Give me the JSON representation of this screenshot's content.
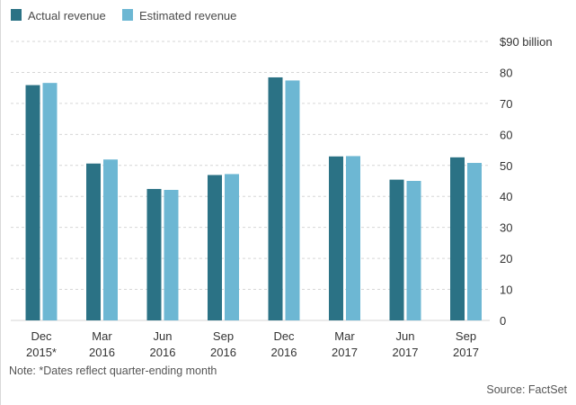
{
  "chart_data": {
    "type": "bar",
    "categories": [
      [
        "Dec",
        "2015*"
      ],
      [
        "Mar",
        "2016"
      ],
      [
        "Jun",
        "2016"
      ],
      [
        "Sep",
        "2016"
      ],
      [
        "Dec",
        "2016"
      ],
      [
        "Mar",
        "2017"
      ],
      [
        "Jun",
        "2017"
      ],
      [
        "Sep",
        "2017"
      ]
    ],
    "series": [
      {
        "name": "Actual revenue",
        "color": "#2b7285",
        "values": [
          75.9,
          50.6,
          42.4,
          46.9,
          78.4,
          52.9,
          45.4,
          52.6
        ]
      },
      {
        "name": "Estimated revenue",
        "color": "#6db7d3",
        "values": [
          76.6,
          51.9,
          42.1,
          47.2,
          77.4,
          53.0,
          45.0,
          50.8
        ]
      }
    ],
    "ylim": [
      0,
      90
    ],
    "ytick_values": [
      0,
      10,
      20,
      30,
      40,
      50,
      60,
      70,
      80,
      90
    ],
    "ytick_labels": [
      "0",
      "10",
      "20",
      "30",
      "40",
      "50",
      "60",
      "70",
      "80",
      "$90 billion"
    ],
    "y_axis_side": "right",
    "grid": "horizontal-dashed",
    "legend_position": "top-left",
    "note": "Note: *Dates reflect quarter-ending month",
    "source": "Source: FactSet"
  }
}
